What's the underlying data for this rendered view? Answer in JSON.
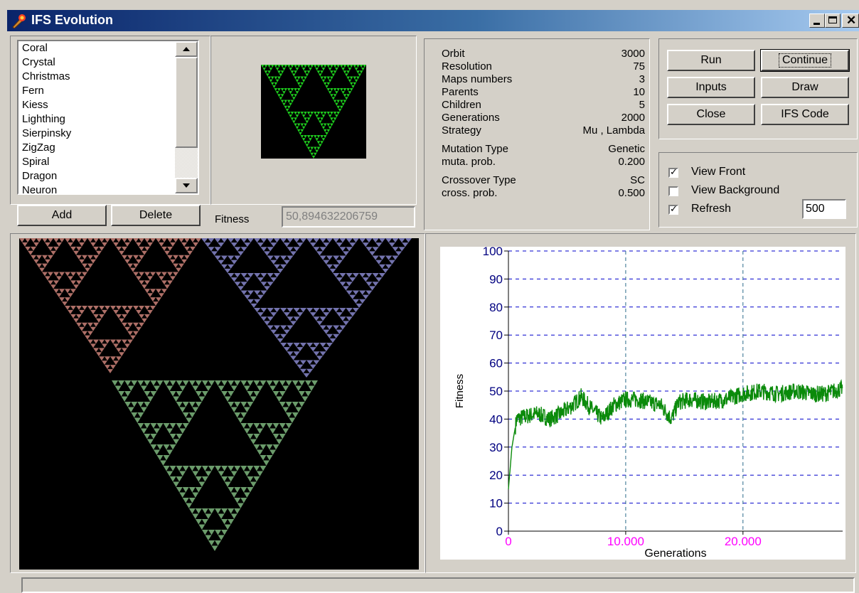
{
  "window": {
    "title": "IFS Evolution"
  },
  "list": {
    "items": [
      "Coral",
      "Crystal",
      "Christmas",
      "Fern",
      "Kiess",
      "Lighthing",
      "Sierpinsky",
      "ZigZag",
      "Spiral",
      "Dragon",
      "Neuron"
    ]
  },
  "buttons": {
    "add": "Add",
    "delete": "Delete",
    "run": "Run",
    "continue": "Continue",
    "inputs": "Inputs",
    "draw": "Draw",
    "close": "Close",
    "ifs_code": "IFS Code"
  },
  "fitness": {
    "label": "Fitness",
    "value": "50,894632206759"
  },
  "params": [
    {
      "label": "Orbit",
      "value": "3000"
    },
    {
      "label": "Resolution",
      "value": "75"
    },
    {
      "label": "Maps numbers",
      "value": "3"
    },
    {
      "label": "Parents",
      "value": "10"
    },
    {
      "label": "Children",
      "value": "5"
    },
    {
      "label": "Generations",
      "value": "2000"
    },
    {
      "label": "Strategy",
      "value": "Mu , Lambda"
    },
    {
      "label": "Mutation Type",
      "value": "Genetic"
    },
    {
      "label": "muta. prob.",
      "value": "0.200"
    },
    {
      "label": "Crossover Type",
      "value": "SC"
    },
    {
      "label": "cross. prob.",
      "value": "0.500"
    }
  ],
  "options": {
    "view_front": {
      "label": "View Front",
      "checked": true
    },
    "view_background": {
      "label": "View Background",
      "checked": false
    },
    "refresh": {
      "label": "Refresh",
      "checked": true
    },
    "refresh_value": "500"
  },
  "colors": {
    "fractal_top_left": "#e8948a",
    "fractal_top_right": "#9a9ae8",
    "fractal_bottom": "#8fd08f",
    "preview": "#1ecc1e",
    "series": "#0a8a0a",
    "grid": "#0000cc",
    "x_ticks": "#ff00ff",
    "y_ticks": "#000080"
  },
  "chart_data": {
    "type": "line",
    "xlabel": "Generations",
    "ylabel": "Fitness",
    "ylim": [
      0,
      100
    ],
    "xlim": [
      0,
      28500
    ],
    "y_ticks": [
      "0",
      "10",
      "20",
      "30",
      "40",
      "50",
      "60",
      "70",
      "80",
      "90",
      "100"
    ],
    "x_ticks": [
      "0",
      "10.000",
      "20.000"
    ],
    "grid": "dashed",
    "series": [
      {
        "points": [
          [
            0,
            15
          ],
          [
            300,
            30
          ],
          [
            700,
            40
          ],
          [
            1500,
            41
          ],
          [
            2500,
            42
          ],
          [
            3500,
            40
          ],
          [
            4500,
            42
          ],
          [
            5500,
            45
          ],
          [
            6200,
            48
          ],
          [
            7000,
            44
          ],
          [
            8000,
            40
          ],
          [
            9000,
            45
          ],
          [
            10000,
            47
          ],
          [
            11000,
            47
          ],
          [
            12000,
            46
          ],
          [
            13000,
            45
          ],
          [
            13900,
            40
          ],
          [
            14500,
            46
          ],
          [
            15500,
            47
          ],
          [
            17000,
            46
          ],
          [
            18500,
            47
          ],
          [
            20000,
            49
          ],
          [
            21500,
            50
          ],
          [
            23000,
            49
          ],
          [
            24500,
            50
          ],
          [
            26000,
            49
          ],
          [
            27000,
            49
          ],
          [
            28500,
            51
          ]
        ]
      }
    ]
  }
}
